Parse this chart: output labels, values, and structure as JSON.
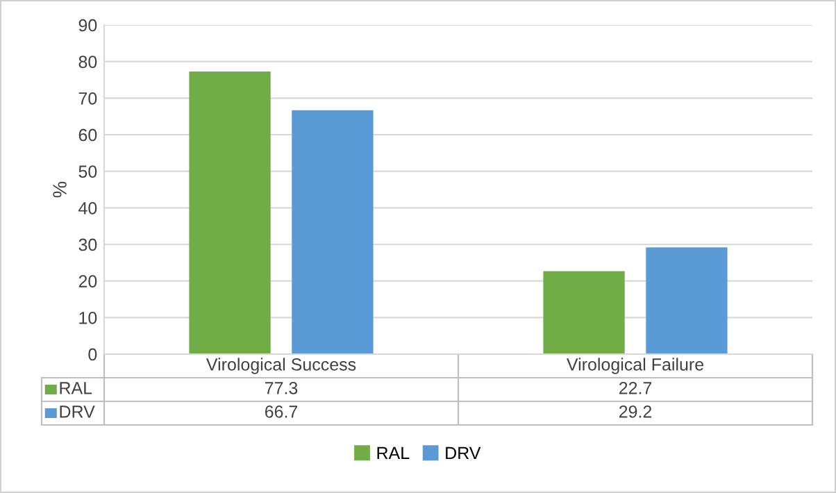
{
  "chart_data": {
    "type": "bar",
    "ylabel": "%",
    "categories": [
      "Virological Success",
      "Virological Failure"
    ],
    "series": [
      {
        "name": "RAL",
        "color": "#70ad47",
        "values": [
          77.3,
          22.7
        ]
      },
      {
        "name": "DRV",
        "color": "#5b9bd5",
        "values": [
          66.7,
          29.2
        ]
      }
    ],
    "ylim": [
      0,
      90
    ],
    "yticks": [
      0,
      10,
      20,
      30,
      40,
      50,
      60,
      70,
      80,
      90
    ],
    "grid": "y",
    "legend": "bottom",
    "data_labels": true
  }
}
